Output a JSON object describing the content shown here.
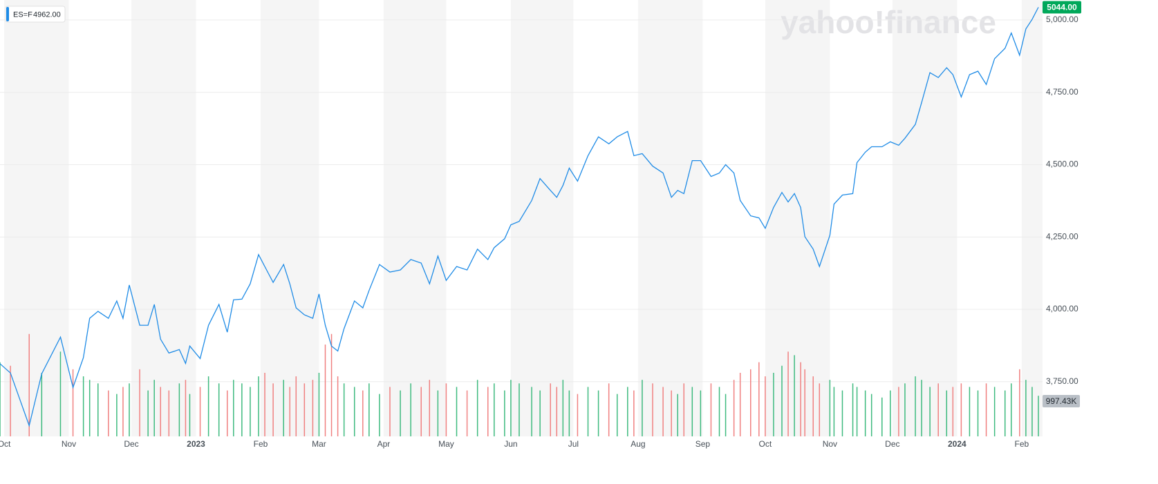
{
  "chart_data": {
    "type": "line",
    "legend_symbol": "ES=F",
    "legend_value": "4962.00",
    "watermark": "yahoo!finance",
    "last_price_label": "5044.00",
    "x": [
      -2,
      3,
      12,
      18,
      27,
      33,
      38,
      41,
      45,
      50,
      54,
      57,
      60,
      65,
      69,
      72,
      75,
      79,
      84,
      87,
      89,
      94,
      98,
      103,
      107,
      110,
      114,
      118,
      122,
      125,
      129,
      134,
      137,
      140,
      144,
      148,
      151,
      154,
      157,
      160,
      163,
      168,
      172,
      175,
      180,
      185,
      190,
      195,
      200,
      204,
      208,
      212,
      217,
      222,
      227,
      232,
      235,
      240,
      243,
      247,
      253,
      257,
      262,
      265,
      268,
      271,
      275,
      280,
      285,
      290,
      294,
      299,
      302,
      306,
      311,
      316,
      320,
      323,
      326,
      330,
      334,
      339,
      343,
      346,
      350,
      353,
      358,
      362,
      365,
      369,
      373,
      376,
      379,
      382,
      384,
      388,
      391,
      396,
      398,
      402,
      407,
      409,
      413,
      416,
      421,
      425,
      429,
      432,
      437,
      440,
      444,
      448,
      452,
      455,
      459,
      463,
      467,
      471,
      475,
      480,
      483,
      487,
      490,
      493,
      496
    ],
    "series": [
      {
        "name": "ES=F",
        "color": "#1e8be6",
        "values": [
          3812,
          3780,
          3598,
          3777,
          3904,
          3730,
          3833,
          3969,
          3993,
          3969,
          4029,
          3969,
          4084,
          3945,
          3945,
          4017,
          3897,
          3849,
          3861,
          3813,
          3873,
          3830,
          3945,
          4017,
          3921,
          4033,
          4035,
          4088,
          4189,
          4148,
          4093,
          4155,
          4088,
          4005,
          3981,
          3969,
          4053,
          3945,
          3873,
          3856,
          3933,
          4029,
          4005,
          4065,
          4155,
          4129,
          4136,
          4172,
          4160,
          4088,
          4184,
          4100,
          4148,
          4136,
          4208,
          4172,
          4213,
          4244,
          4292,
          4304,
          4376,
          4452,
          4411,
          4387,
          4428,
          4488,
          4443,
          4531,
          4596,
          4572,
          4596,
          4615,
          4531,
          4538,
          4495,
          4471,
          4387,
          4411,
          4400,
          4514,
          4514,
          4459,
          4471,
          4500,
          4471,
          4376,
          4323,
          4316,
          4280,
          4352,
          4404,
          4371,
          4400,
          4352,
          4251,
          4208,
          4148,
          4256,
          4364,
          4395,
          4400,
          4507,
          4543,
          4562,
          4562,
          4579,
          4567,
          4591,
          4639,
          4715,
          4818,
          4801,
          4835,
          4811,
          4734,
          4811,
          4823,
          4777,
          4866,
          4902,
          4955,
          4878,
          4969,
          5002,
          5044
        ]
      },
      {
        "name": "Volume",
        "axis": "y2",
        "up_color": "#3dba7e",
        "down_color": "#f08080",
        "values": [
          2100000,
          2000000,
          2900000,
          1800000,
          2400000,
          1900000,
          1700000,
          1600000,
          1500000,
          1300000,
          1200000,
          1400000,
          1500000,
          1900000,
          1300000,
          1600000,
          1400000,
          1300000,
          1500000,
          1600000,
          1200000,
          1400000,
          1700000,
          1500000,
          1300000,
          1600000,
          1500000,
          1400000,
          1700000,
          1800000,
          1500000,
          1600000,
          1400000,
          1700000,
          1500000,
          1600000,
          1800000,
          2600000,
          2900000,
          1700000,
          1500000,
          1400000,
          1300000,
          1500000,
          1200000,
          1400000,
          1300000,
          1500000,
          1400000,
          1600000,
          1300000,
          1500000,
          1400000,
          1300000,
          1600000,
          1400000,
          1500000,
          1300000,
          1600000,
          1500000,
          1400000,
          1300000,
          1500000,
          1400000,
          1600000,
          1300000,
          1200000,
          1400000,
          1300000,
          1500000,
          1200000,
          1400000,
          1300000,
          1600000,
          1500000,
          1400000,
          1300000,
          1200000,
          1500000,
          1400000,
          1300000,
          1500000,
          1400000,
          1200000,
          1600000,
          1800000,
          1900000,
          2100000,
          1700000,
          1800000,
          2000000,
          2400000,
          2300000,
          2100000,
          1900000,
          1700000,
          1500000,
          1600000,
          1400000,
          1300000,
          1500000,
          1400000,
          1300000,
          1200000,
          1100000,
          1300000,
          1400000,
          1500000,
          1700000,
          1600000,
          1400000,
          1500000,
          1300000,
          1400000,
          1500000,
          1400000,
          1300000,
          1500000,
          1400000,
          1300000,
          1500000,
          1900000,
          1600000,
          1400000,
          1150000
        ]
      }
    ],
    "xlim": [
      -2,
      498
    ],
    "xticks": [
      {
        "value": 0,
        "label": "Oct"
      },
      {
        "value": 31,
        "label": "Nov"
      },
      {
        "value": 61,
        "label": "Dec"
      },
      {
        "value": 92,
        "label": "2023"
      },
      {
        "value": 123,
        "label": "Feb"
      },
      {
        "value": 151,
        "label": "Mar"
      },
      {
        "value": 182,
        "label": "Apr"
      },
      {
        "value": 212,
        "label": "May"
      },
      {
        "value": 243,
        "label": "Jun"
      },
      {
        "value": 273,
        "label": "Jul"
      },
      {
        "value": 304,
        "label": "Aug"
      },
      {
        "value": 335,
        "label": "Sep"
      },
      {
        "value": 365,
        "label": "Oct"
      },
      {
        "value": 396,
        "label": "Nov"
      },
      {
        "value": 426,
        "label": "Dec"
      },
      {
        "value": 457,
        "label": "2024"
      },
      {
        "value": 488,
        "label": "Feb"
      }
    ],
    "ylim": [
      3561,
      5069
    ],
    "yticks": [
      {
        "value": 3750,
        "label": "3,750.00"
      },
      {
        "value": 4000,
        "label": "4,000.00"
      },
      {
        "value": 4250,
        "label": "4,250.00"
      },
      {
        "value": 4500,
        "label": "4,500.00"
      },
      {
        "value": 4750,
        "label": "4,750.00"
      },
      {
        "value": 5000,
        "label": "5,000.00"
      }
    ],
    "y2lim": [
      0,
      12360000
    ],
    "y2ticks": [
      {
        "value": 997430,
        "label": "997.43K"
      }
    ],
    "grid": true
  }
}
